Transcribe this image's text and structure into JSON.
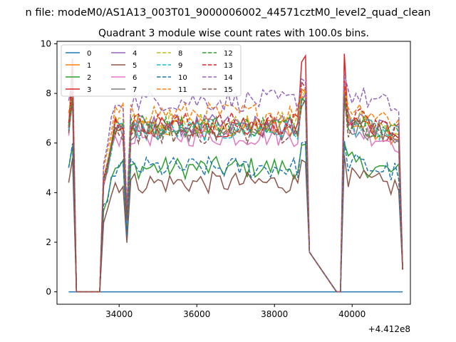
{
  "figure": {
    "suptitle": "n file: modeM0/AS1A13_003T01_9000006002_44571cztM0_level2_quad_clean",
    "title": "Quadrant 3 module wise count rates with 100.0s bins.",
    "offset_label": "+4.412e8"
  },
  "chart_data": {
    "type": "line",
    "title": "Quadrant 3 module wise count rates with 100.0s bins.",
    "xlabel": "",
    "ylabel": "",
    "x_offset": 441200000,
    "xlim": [
      32400,
      41500
    ],
    "ylim": [
      -0.5,
      10.1
    ],
    "x_ticks": [
      34000,
      36000,
      38000,
      40000
    ],
    "x_tick_labels": [
      "34000",
      "36000",
      "38000",
      "40000"
    ],
    "y_ticks": [
      0,
      2,
      4,
      6,
      8,
      10
    ],
    "y_tick_labels": [
      "0",
      "2",
      "4",
      "6",
      "8",
      "10"
    ],
    "grid": false,
    "legend_position": "top-left",
    "legend_columns": 4,
    "segments": [
      [
        32700,
        32900
      ],
      [
        33500,
        38900
      ],
      [
        39700,
        41300
      ]
    ],
    "gaps": [
      [
        32900,
        33500
      ],
      [
        38900,
        39700
      ]
    ],
    "series": [
      {
        "name": "0",
        "color": "#1f77b4",
        "dash": "solid",
        "level": 0.0,
        "spike": 0.0
      },
      {
        "name": "1",
        "color": "#ff7f0e",
        "dash": "solid",
        "level": 6.6,
        "spike": 8.3
      },
      {
        "name": "2",
        "color": "#2ca02c",
        "dash": "solid",
        "level": 5.0,
        "spike": 6.0
      },
      {
        "name": "3",
        "color": "#d62728",
        "dash": "solid",
        "level": 6.6,
        "spike": 9.6
      },
      {
        "name": "4",
        "color": "#9467bd",
        "dash": "solid",
        "level": 6.7,
        "spike": 8.0
      },
      {
        "name": "5",
        "color": "#8c564b",
        "dash": "solid",
        "level": 4.4,
        "spike": 5.5
      },
      {
        "name": "6",
        "color": "#e377c2",
        "dash": "solid",
        "level": 6.3,
        "spike": 8.1
      },
      {
        "name": "7",
        "color": "#7f7f7f",
        "dash": "solid",
        "level": 6.5,
        "spike": 7.8
      },
      {
        "name": "8",
        "color": "#bcbd22",
        "dash": "dashed",
        "level": 6.8,
        "spike": 8.2
      },
      {
        "name": "9",
        "color": "#17becf",
        "dash": "dashed",
        "level": 6.5,
        "spike": 7.9
      },
      {
        "name": "10",
        "color": "#1f77b4",
        "dash": "dashed",
        "level": 5.0,
        "spike": 6.1
      },
      {
        "name": "11",
        "color": "#ff7f0e",
        "dash": "dashed",
        "level": 7.2,
        "spike": 8.4
      },
      {
        "name": "12",
        "color": "#2ca02c",
        "dash": "dashed",
        "level": 6.7,
        "spike": 8.0
      },
      {
        "name": "13",
        "color": "#d62728",
        "dash": "dashed",
        "level": 6.8,
        "spike": 8.5
      },
      {
        "name": "14",
        "color": "#9467bd",
        "dash": "dashed",
        "level": 7.7,
        "spike": 8.8
      },
      {
        "name": "15",
        "color": "#8c564b",
        "dash": "dashed",
        "level": 6.4,
        "spike": 7.9
      }
    ]
  }
}
